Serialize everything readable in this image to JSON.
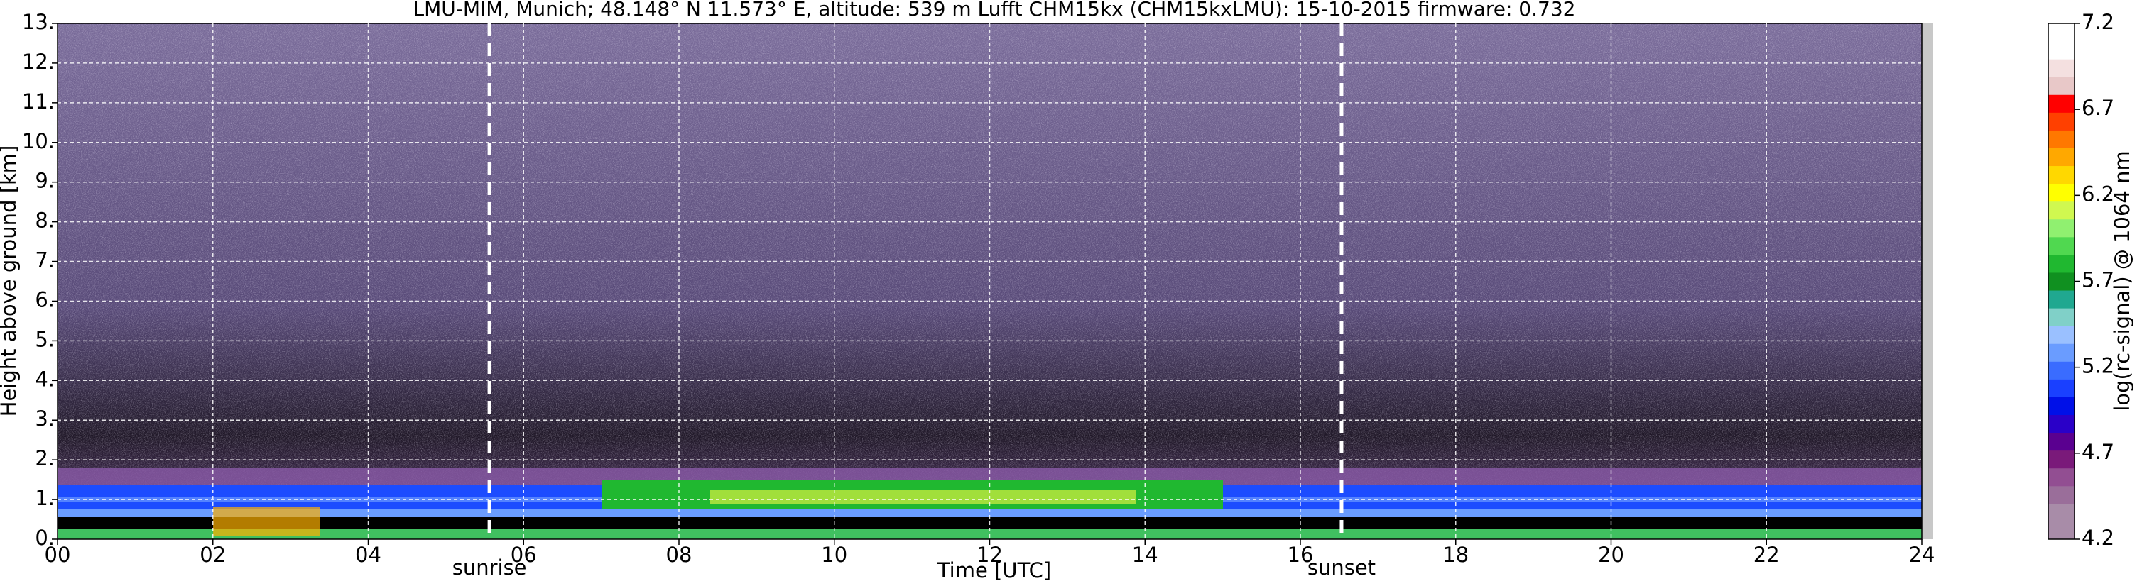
{
  "chart_data": {
    "type": "heatmap",
    "title": "LMU-MIM, Munich; 48.148° N 11.573° E, altitude: 539 m    Lufft CHM15kx (CHM15kxLMU): 15-10-2015    firmware: 0.732",
    "xlabel": "Time [UTC]",
    "ylabel": "Height above ground [km]",
    "xlim": [
      0,
      24
    ],
    "xticks": [
      {
        "value": 0,
        "label": "00"
      },
      {
        "value": 2,
        "label": "02"
      },
      {
        "value": 4,
        "label": "04"
      },
      {
        "value": 6,
        "label": "06"
      },
      {
        "value": 8,
        "label": "08"
      },
      10,
      12,
      14,
      16,
      18,
      20,
      22,
      24
    ],
    "ylim": [
      0,
      13
    ],
    "yticks": [
      {
        "value": 0,
        "label": "0."
      },
      {
        "value": 1,
        "label": "1."
      },
      {
        "value": 2,
        "label": "2."
      },
      {
        "value": 3,
        "label": "3."
      },
      {
        "value": 4,
        "label": "4."
      },
      {
        "value": 5,
        "label": "5."
      },
      {
        "value": 6,
        "label": "6."
      },
      {
        "value": 7,
        "label": "7."
      },
      {
        "value": 8,
        "label": "8."
      },
      {
        "value": 9,
        "label": "9."
      },
      {
        "value": 10,
        "label": "10."
      },
      {
        "value": 11,
        "label": "11."
      },
      {
        "value": 12,
        "label": "12."
      },
      {
        "value": 13,
        "label": "13."
      }
    ],
    "grid": true,
    "annotations": [
      {
        "label": "sunrise",
        "x": 5.56
      },
      {
        "label": "sunset",
        "x": 16.53
      }
    ],
    "colorbar": {
      "label": "log(rc-signal) @ 1064 nm",
      "lim": [
        4.2,
        7.2
      ],
      "ticks": [
        4.2,
        4.7,
        5.2,
        5.7,
        6.2,
        6.7,
        7.2
      ],
      "colors": [
        "#a88ca8",
        "#a88ca8",
        "#9a6e9a",
        "#924e92",
        "#7a1a7a",
        "#5a0090",
        "#2a00c8",
        "#0010e8",
        "#1a40ff",
        "#3a6cff",
        "#6a9cff",
        "#9ac0ff",
        "#80d0c8",
        "#20a890",
        "#109020",
        "#20b830",
        "#50d850",
        "#90f070",
        "#d0f850",
        "#ffff00",
        "#ffd800",
        "#ffa800",
        "#ff7800",
        "#ff4000",
        "#ff0000",
        "#e8c8c8",
        "#f4e0e0",
        "#ffffff",
        "#ffffff"
      ]
    }
  }
}
